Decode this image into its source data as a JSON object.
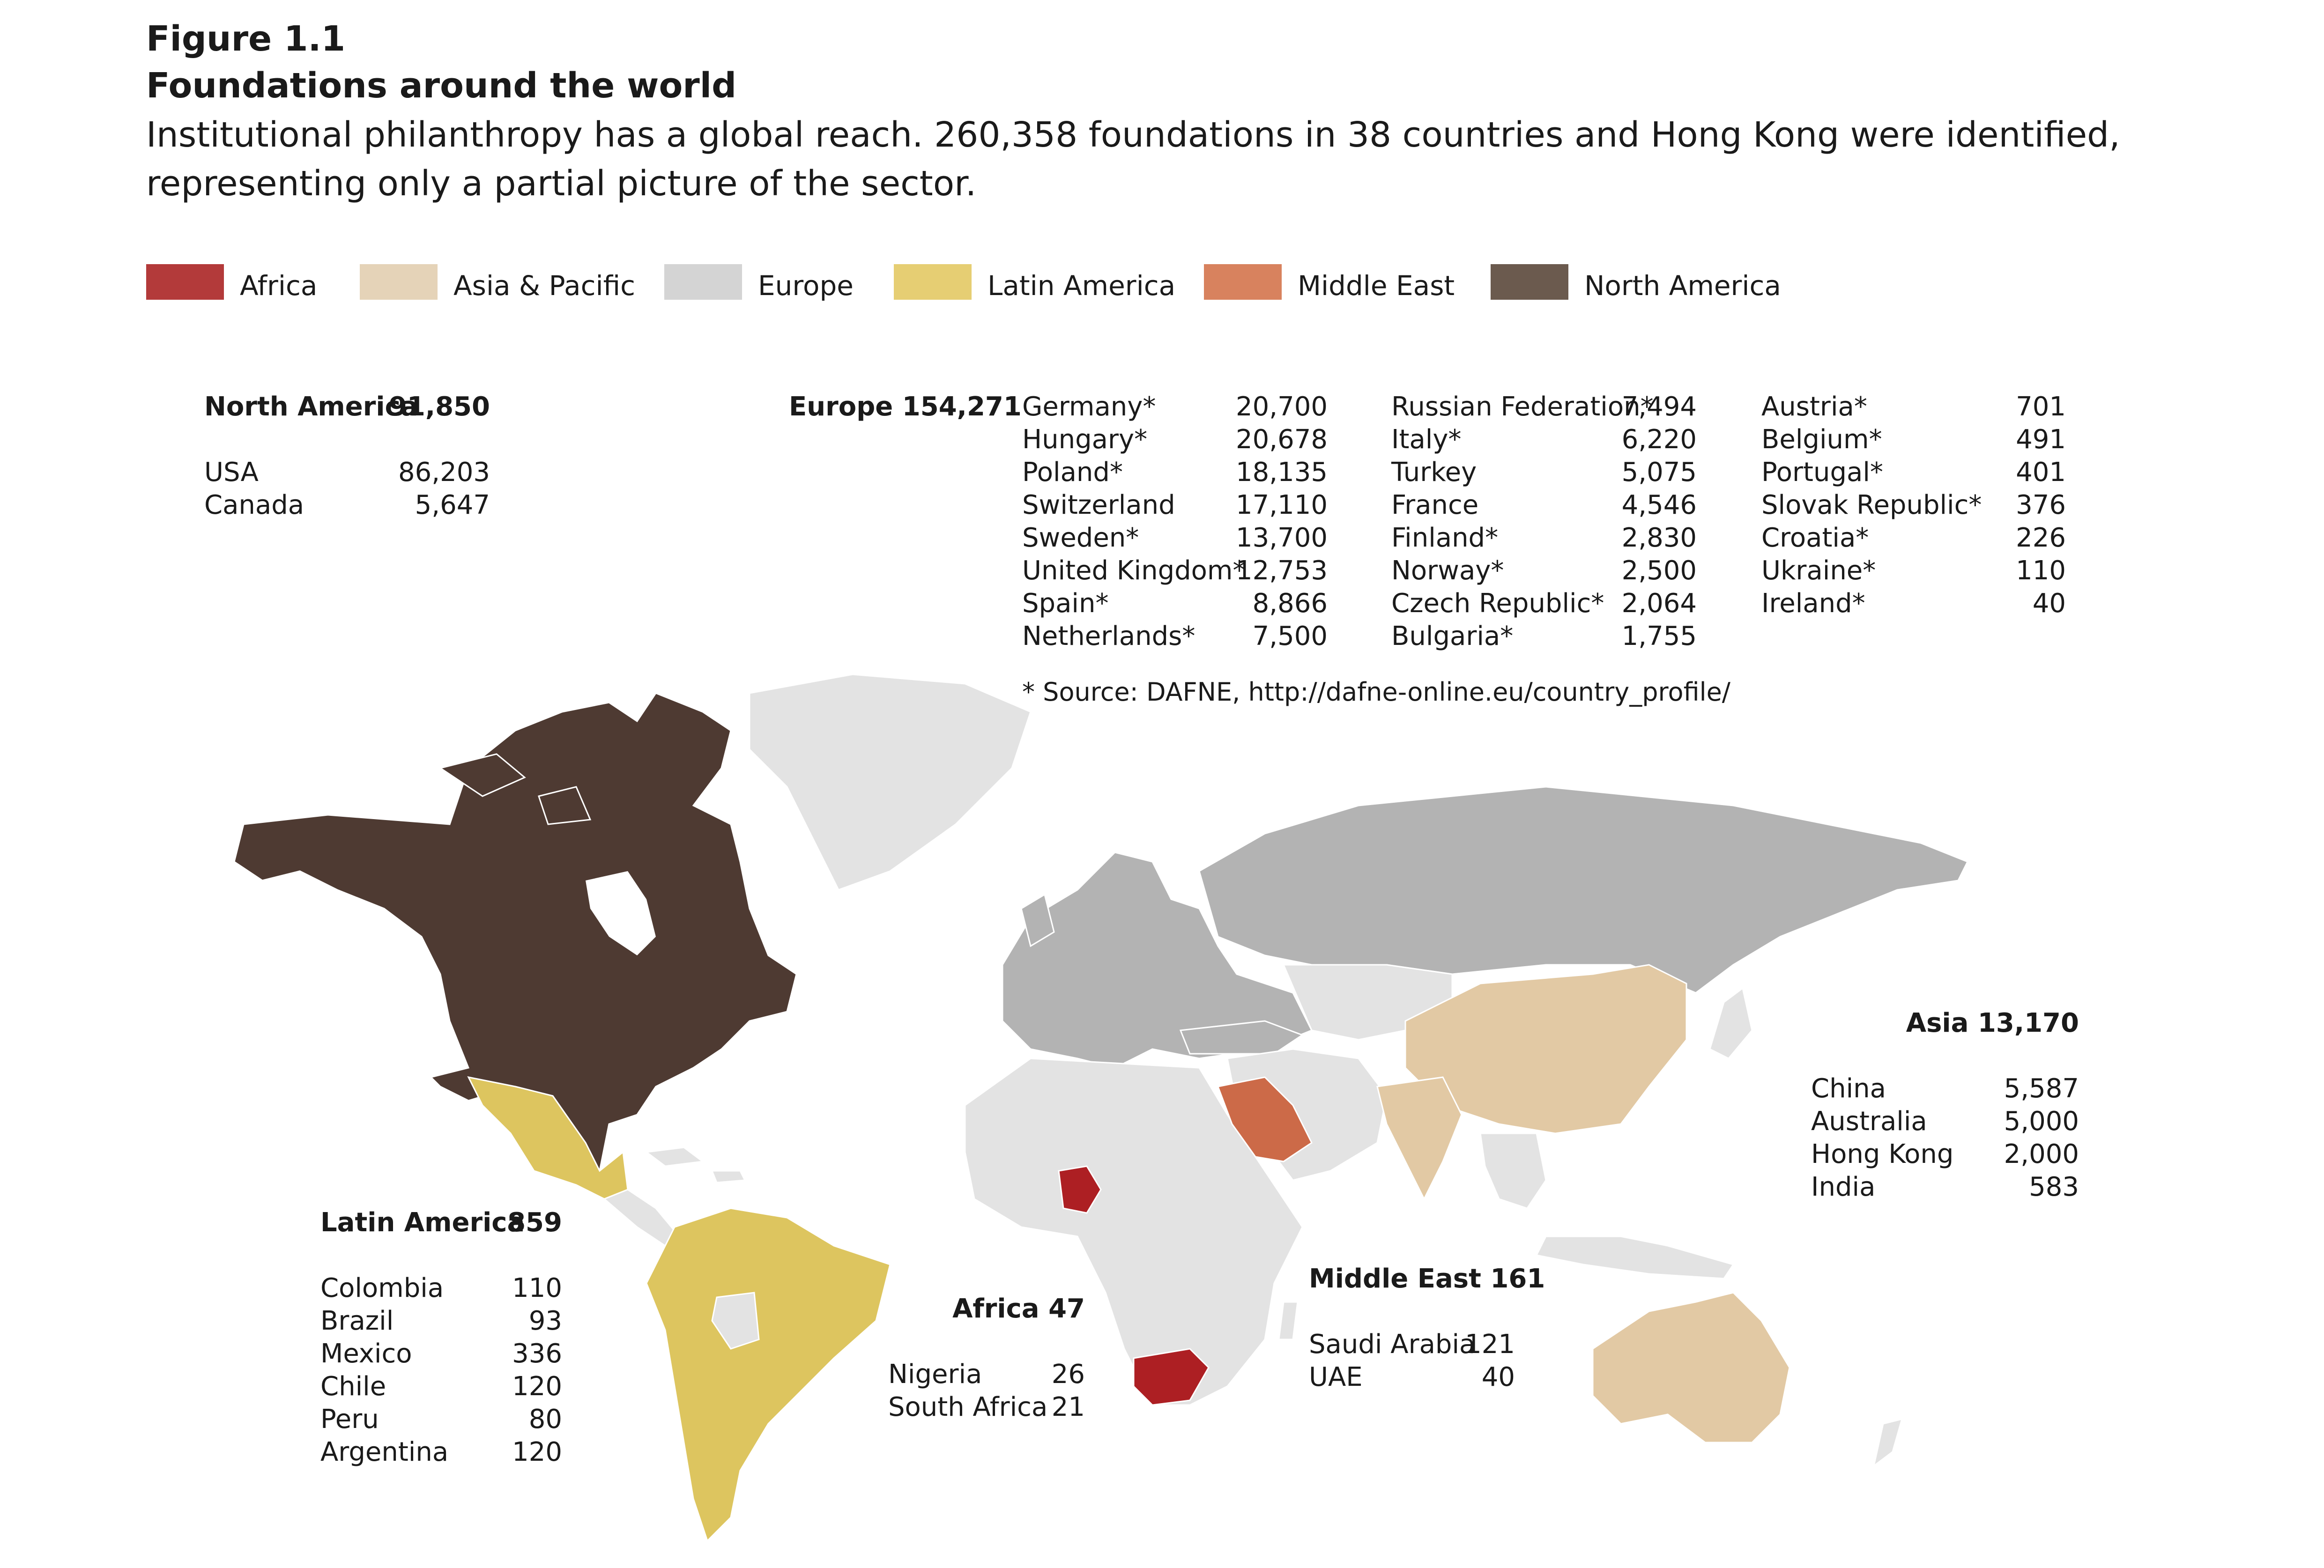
{
  "figure": {
    "label": "Figure 1.1",
    "title": "Foundations around the world",
    "subtitle": "Institutional philanthropy has a global reach. 260,358 foundations in 38 countries and Hong Kong were identified, representing only a partial picture of the sector."
  },
  "legend": [
    {
      "label": "Africa",
      "color": "#b33a3a"
    },
    {
      "label": "Asia & Pacific",
      "color": "#e5d3b8"
    },
    {
      "label": "Europe",
      "color": "#d4d4d4"
    },
    {
      "label": "Latin America",
      "color": "#e6ce73"
    },
    {
      "label": "Middle East",
      "color": "#d8825e"
    },
    {
      "label": "North America",
      "color": "#6b5a4e"
    }
  ],
  "map_colors": {
    "north_america": "#4e3a32",
    "latin_america": "#ddc55f",
    "europe": "#b3b3b3",
    "world_other": "#e3e3e3",
    "asia_pacific": "#e2c9a4",
    "africa": "#ad1f23",
    "middle_east": "#cc6a48"
  },
  "regions": {
    "north_america": {
      "name": "North America",
      "total": "91,850",
      "rows": [
        {
          "name": "USA",
          "value": "86,203"
        },
        {
          "name": "Canada",
          "value": "5,647"
        }
      ]
    },
    "europe": {
      "name": "Europe",
      "total": "154,271",
      "columns": [
        [
          {
            "name": "Germany*",
            "value": "20,700"
          },
          {
            "name": "Hungary*",
            "value": "20,678"
          },
          {
            "name": "Poland*",
            "value": "18,135"
          },
          {
            "name": "Switzerland",
            "value": "17,110"
          },
          {
            "name": "Sweden*",
            "value": "13,700"
          },
          {
            "name": "United Kingdom*",
            "value": "12,753"
          },
          {
            "name": "Spain*",
            "value": "8,866"
          },
          {
            "name": "Netherlands*",
            "value": "7,500"
          }
        ],
        [
          {
            "name": "Russian Federation*",
            "value": "7,494"
          },
          {
            "name": "Italy*",
            "value": "6,220"
          },
          {
            "name": "Turkey",
            "value": "5,075"
          },
          {
            "name": "France",
            "value": "4,546"
          },
          {
            "name": "Finland*",
            "value": "2,830"
          },
          {
            "name": "Norway*",
            "value": "2,500"
          },
          {
            "name": "Czech Republic*",
            "value": "2,064"
          },
          {
            "name": "Bulgaria*",
            "value": "1,755"
          }
        ],
        [
          {
            "name": "Austria*",
            "value": "701"
          },
          {
            "name": "Belgium*",
            "value": "491"
          },
          {
            "name": "Portugal*",
            "value": "401"
          },
          {
            "name": "Slovak Republic*",
            "value": "376"
          },
          {
            "name": "Croatia*",
            "value": "226"
          },
          {
            "name": "Ukraine*",
            "value": "110"
          },
          {
            "name": "Ireland*",
            "value": "40"
          }
        ]
      ],
      "source": "* Source: DAFNE, http://dafne-online.eu/country_profile/"
    },
    "asia": {
      "name": "Asia",
      "total": "13,170",
      "rows": [
        {
          "name": "China",
          "value": "5,587"
        },
        {
          "name": "Australia",
          "value": "5,000"
        },
        {
          "name": "Hong Kong",
          "value": "2,000"
        },
        {
          "name": "India",
          "value": "583"
        }
      ]
    },
    "latin_america": {
      "name": "Latin America",
      "total": "859",
      "rows": [
        {
          "name": "Colombia",
          "value": "110"
        },
        {
          "name": "Brazil",
          "value": "93"
        },
        {
          "name": "Mexico",
          "value": "336"
        },
        {
          "name": "Chile",
          "value": "120"
        },
        {
          "name": "Peru",
          "value": "80"
        },
        {
          "name": "Argentina",
          "value": "120"
        }
      ]
    },
    "africa": {
      "name": "Africa",
      "total": "47",
      "rows": [
        {
          "name": "Nigeria",
          "value": "26"
        },
        {
          "name": "South Africa",
          "value": "21"
        }
      ]
    },
    "middle_east": {
      "name": "Middle East",
      "total": "161",
      "rows": [
        {
          "name": "Saudi Arabia",
          "value": "121"
        },
        {
          "name": "UAE",
          "value": "40"
        }
      ]
    }
  }
}
